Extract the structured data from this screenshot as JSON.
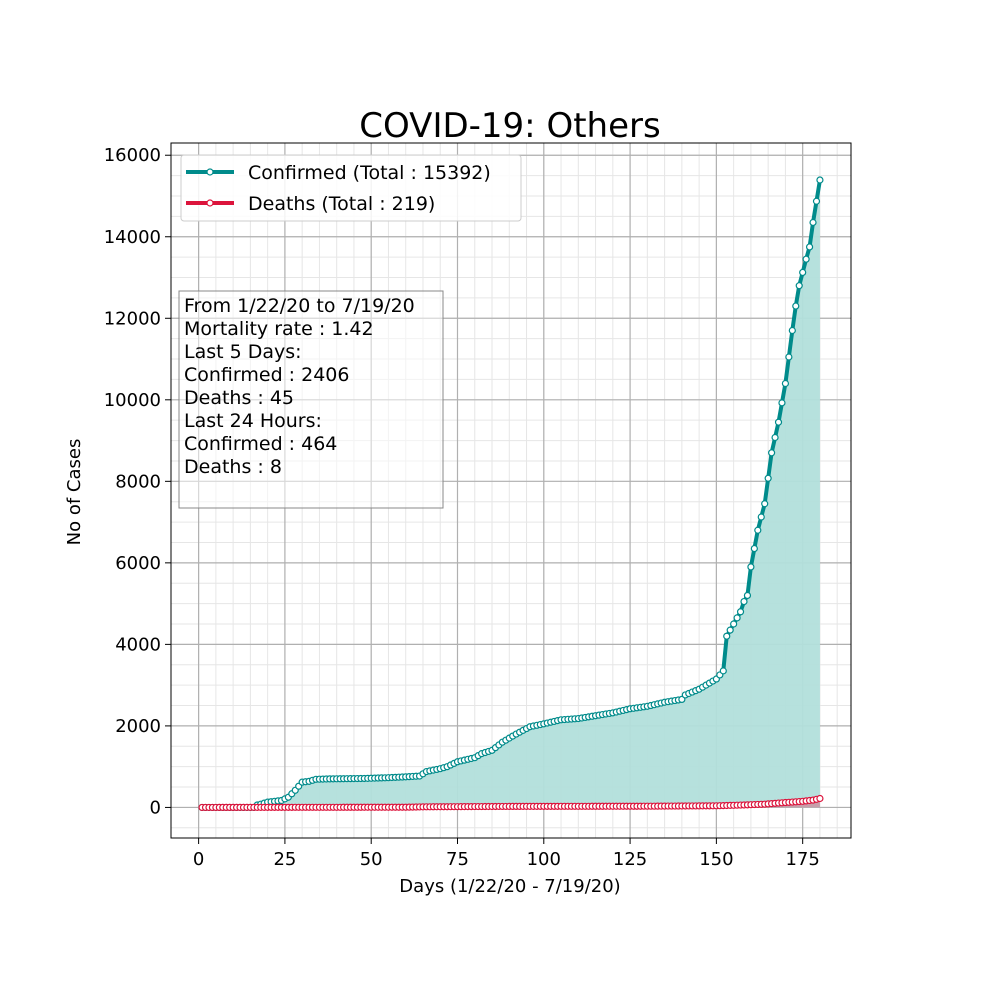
{
  "chart_data": {
    "type": "line",
    "title": "COVID-19: Others",
    "xlabel": "Days (1/22/20 - 7/19/20)",
    "ylabel": "No of Cases",
    "xlim": [
      -8,
      189
    ],
    "ylim": [
      -750,
      16300
    ],
    "xticks": [
      0,
      25,
      50,
      75,
      100,
      125,
      150,
      175
    ],
    "yticks": [
      0,
      2000,
      4000,
      6000,
      8000,
      10000,
      12000,
      14000,
      16000
    ],
    "grid": true,
    "legend_position": "top-left",
    "series": [
      {
        "name": "Confirmed (Total : 15392)",
        "color": "#008b8b",
        "fill": "#b2dfdb",
        "marker_knots": [
          [
            1,
            0
          ],
          [
            16,
            0
          ],
          [
            17,
            60
          ],
          [
            18,
            80
          ],
          [
            20,
            130
          ],
          [
            24,
            170
          ],
          [
            26,
            250
          ],
          [
            28,
            420
          ],
          [
            30,
            620
          ],
          [
            32,
            640
          ],
          [
            34,
            690
          ],
          [
            38,
            700
          ],
          [
            48,
            710
          ],
          [
            55,
            730
          ],
          [
            60,
            750
          ],
          [
            64,
            770
          ],
          [
            66,
            880
          ],
          [
            70,
            950
          ],
          [
            72,
            1000
          ],
          [
            75,
            1120
          ],
          [
            80,
            1220
          ],
          [
            82,
            1320
          ],
          [
            85,
            1400
          ],
          [
            88,
            1600
          ],
          [
            92,
            1800
          ],
          [
            96,
            1980
          ],
          [
            100,
            2050
          ],
          [
            105,
            2150
          ],
          [
            110,
            2180
          ],
          [
            115,
            2250
          ],
          [
            120,
            2320
          ],
          [
            125,
            2420
          ],
          [
            130,
            2480
          ],
          [
            135,
            2580
          ],
          [
            140,
            2650
          ],
          [
            141,
            2760
          ],
          [
            145,
            2900
          ],
          [
            150,
            3150
          ],
          [
            152,
            3350
          ],
          [
            153,
            4200
          ],
          [
            155,
            4500
          ],
          [
            157,
            4800
          ],
          [
            158,
            5050
          ],
          [
            159,
            5200
          ],
          [
            160,
            5900
          ],
          [
            161,
            6350
          ],
          [
            162,
            6800
          ],
          [
            164,
            7450
          ],
          [
            166,
            8700
          ],
          [
            168,
            9450
          ],
          [
            170,
            10400
          ],
          [
            172,
            11700
          ],
          [
            173,
            12300
          ],
          [
            174,
            12800
          ],
          [
            176,
            13450
          ],
          [
            177,
            13750
          ],
          [
            178,
            14350
          ],
          [
            180,
            15392
          ]
        ]
      },
      {
        "name": "Deaths (Total : 219)",
        "color": "#dc143c",
        "fill": "#c99aa6",
        "marker_knots": [
          [
            1,
            0
          ],
          [
            60,
            5
          ],
          [
            66,
            15
          ],
          [
            90,
            25
          ],
          [
            130,
            30
          ],
          [
            150,
            40
          ],
          [
            158,
            60
          ],
          [
            164,
            80
          ],
          [
            170,
            120
          ],
          [
            175,
            150
          ],
          [
            178,
            180
          ],
          [
            180,
            219
          ]
        ]
      }
    ],
    "annotation": [
      "From 1/22/20 to 7/19/20",
      "Mortality rate : 1.42",
      "Last 5 Days:",
      "Confirmed : 2406",
      "Deaths : 45",
      "Last 24 Hours:",
      "Confirmed : 464",
      "Deaths : 8"
    ]
  }
}
